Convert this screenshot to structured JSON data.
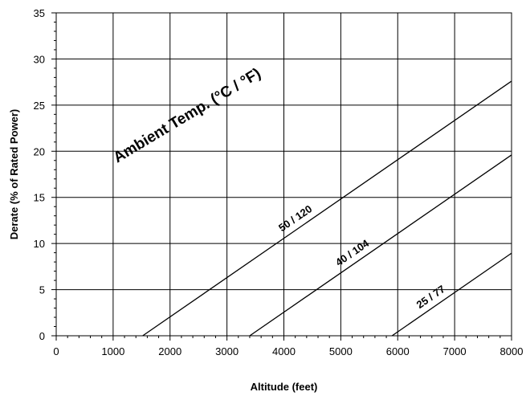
{
  "chart_data": {
    "type": "line",
    "xlabel": "Altitude (feet)",
    "ylabel": "Derate (% of Rated Power)",
    "xlim": [
      0,
      8000
    ],
    "ylim": [
      0,
      35
    ],
    "x_ticks": [
      0,
      1000,
      2000,
      3000,
      4000,
      5000,
      6000,
      7000,
      8000
    ],
    "y_ticks": [
      0,
      5,
      10,
      15,
      20,
      25,
      30,
      35
    ],
    "x_minor_step": 200,
    "y_minor_step": 1,
    "grid": true,
    "annotation": "Ambient Temp. (°C / °F)",
    "series": [
      {
        "name": "50 / 120",
        "points": [
          [
            1520,
            0
          ],
          [
            8000,
            27.6
          ]
        ]
      },
      {
        "name": "40 / 104",
        "points": [
          [
            3400,
            0
          ],
          [
            8000,
            19.6
          ]
        ]
      },
      {
        "name": "25 / 77",
        "points": [
          [
            5900,
            0
          ],
          [
            8000,
            8.95
          ]
        ]
      }
    ],
    "colors": {
      "line": "#000000",
      "grid": "#000000",
      "background": "#ffffff"
    }
  }
}
